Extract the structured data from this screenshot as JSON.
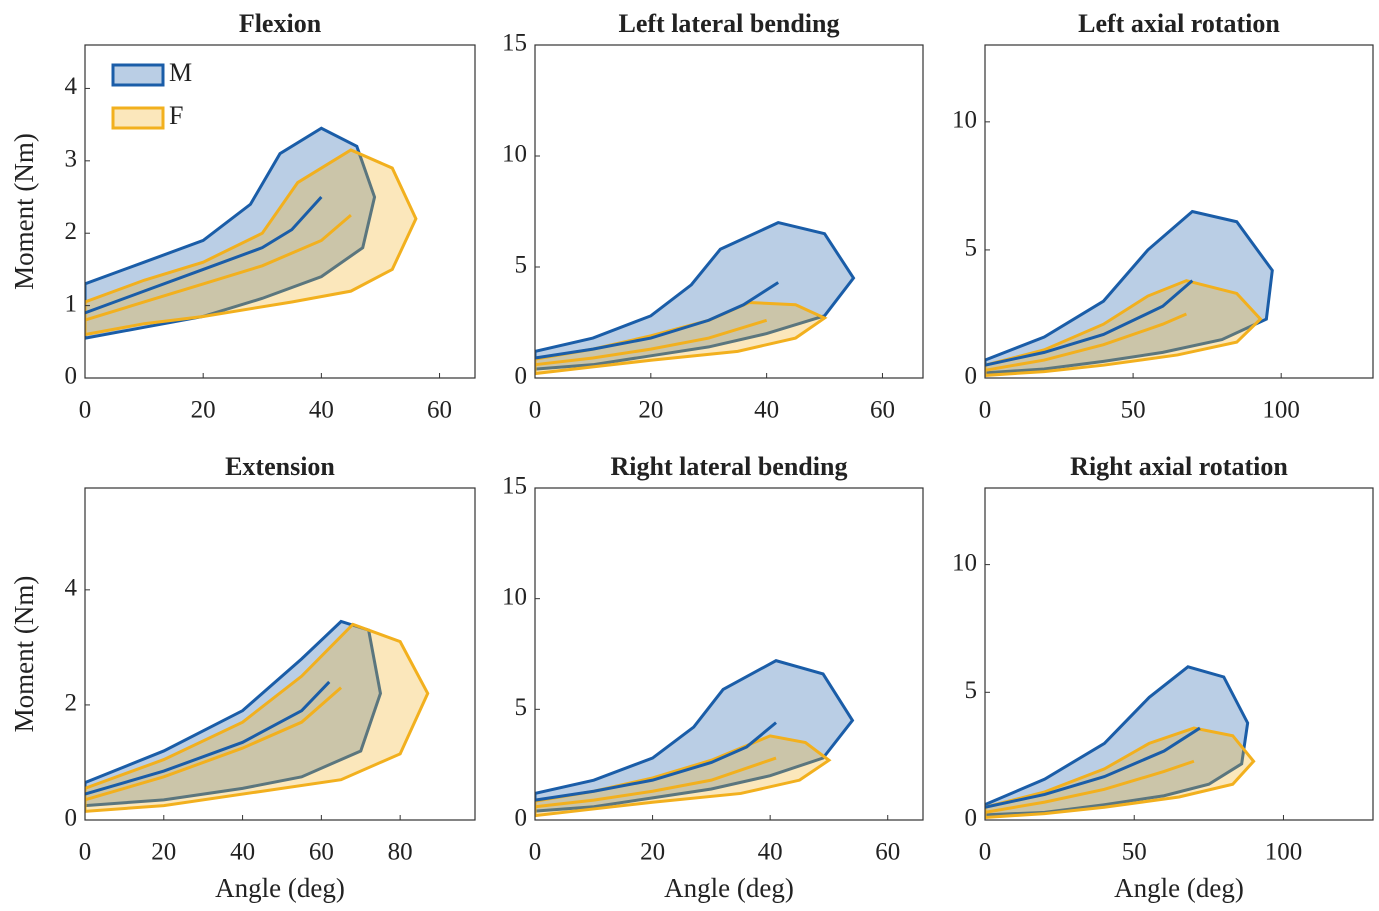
{
  "chart_data": [
    {
      "type": "line",
      "title": "Flexion",
      "ylabel": "Moment (Nm)",
      "legend": "upper left",
      "xlim": [
        0,
        66
      ],
      "ylim": [
        0,
        4.6
      ],
      "xticks": [
        0,
        20,
        40,
        60
      ],
      "yticks": [
        0,
        1,
        2,
        3,
        4
      ],
      "series": [
        {
          "name": "M",
          "color": "#1a5da8",
          "x": [
            0,
            10,
            20,
            30,
            35,
            40
          ],
          "values": [
            0.9,
            1.2,
            1.5,
            1.8,
            2.05,
            2.5
          ],
          "corridor_x": [
            0,
            10,
            20,
            28,
            33,
            40,
            46,
            49,
            47,
            40,
            30,
            20,
            10,
            0
          ],
          "corridor_values": [
            1.3,
            1.6,
            1.9,
            2.4,
            3.1,
            3.45,
            3.2,
            2.5,
            1.8,
            1.4,
            1.1,
            0.85,
            0.7,
            0.55
          ]
        },
        {
          "name": "F",
          "color": "#f2b01e",
          "x": [
            0,
            10,
            20,
            30,
            40,
            45
          ],
          "values": [
            0.8,
            1.05,
            1.3,
            1.55,
            1.9,
            2.25
          ],
          "corridor_x": [
            0,
            10,
            20,
            30,
            36,
            45,
            52,
            56,
            52,
            45,
            35,
            20,
            10,
            0
          ],
          "corridor_values": [
            1.05,
            1.35,
            1.6,
            2.0,
            2.7,
            3.15,
            2.9,
            2.2,
            1.5,
            1.2,
            1.05,
            0.85,
            0.75,
            0.6
          ]
        }
      ]
    },
    {
      "type": "line",
      "title": "Left lateral bending",
      "xlim": [
        0,
        67
      ],
      "ylim": [
        0,
        15
      ],
      "xticks": [
        0,
        20,
        40,
        60
      ],
      "yticks": [
        0,
        5,
        10,
        15
      ],
      "series": [
        {
          "color": "#1a5da8",
          "x": [
            0,
            10,
            20,
            30,
            36,
            42
          ],
          "values": [
            0.9,
            1.3,
            1.8,
            2.6,
            3.3,
            4.3
          ],
          "corridor_x": [
            0,
            10,
            20,
            27,
            32,
            42,
            50,
            55,
            50,
            40,
            30,
            20,
            10,
            0
          ],
          "corridor_values": [
            1.2,
            1.8,
            2.8,
            4.2,
            5.8,
            7.0,
            6.5,
            4.5,
            2.8,
            2.0,
            1.4,
            1.0,
            0.6,
            0.4
          ]
        },
        {
          "color": "#f2b01e",
          "x": [
            0,
            10,
            20,
            30,
            40
          ],
          "values": [
            0.6,
            0.9,
            1.3,
            1.8,
            2.6
          ],
          "corridor_x": [
            0,
            10,
            20,
            30,
            37,
            45,
            50,
            45,
            35,
            20,
            10,
            0
          ],
          "corridor_values": [
            0.85,
            1.3,
            1.9,
            2.6,
            3.4,
            3.3,
            2.7,
            1.8,
            1.2,
            0.8,
            0.5,
            0.2
          ]
        }
      ]
    },
    {
      "type": "line",
      "title": "Left axial rotation",
      "xlim": [
        0,
        131
      ],
      "ylim": [
        0,
        13
      ],
      "xticks": [
        0,
        50,
        100
      ],
      "yticks": [
        0,
        5,
        10
      ],
      "series": [
        {
          "color": "#1a5da8",
          "x": [
            0,
            20,
            40,
            60,
            70
          ],
          "values": [
            0.5,
            1.0,
            1.7,
            2.8,
            3.8
          ],
          "corridor_x": [
            0,
            20,
            40,
            55,
            70,
            85,
            97,
            95,
            80,
            60,
            40,
            20,
            0
          ],
          "corridor_values": [
            0.7,
            1.6,
            3.0,
            5.0,
            6.5,
            6.1,
            4.2,
            2.3,
            1.5,
            1.0,
            0.65,
            0.35,
            0.2
          ]
        },
        {
          "color": "#f2b01e",
          "x": [
            0,
            20,
            40,
            60,
            68
          ],
          "values": [
            0.3,
            0.7,
            1.3,
            2.1,
            2.5
          ],
          "corridor_x": [
            0,
            20,
            40,
            55,
            68,
            85,
            93,
            85,
            65,
            40,
            20,
            0
          ],
          "corridor_values": [
            0.5,
            1.1,
            2.1,
            3.2,
            3.8,
            3.3,
            2.3,
            1.4,
            0.9,
            0.5,
            0.25,
            0.1
          ]
        }
      ]
    },
    {
      "type": "line",
      "title": "Extension",
      "ylabel": "Moment (Nm)",
      "xlabel": "Angle (deg)",
      "xlim": [
        0,
        99
      ],
      "ylim": [
        0,
        5.77
      ],
      "xticks": [
        0,
        20,
        40,
        60,
        80
      ],
      "yticks": [
        0,
        2,
        4
      ],
      "series": [
        {
          "color": "#1a5da8",
          "x": [
            0,
            20,
            40,
            55,
            62
          ],
          "values": [
            0.45,
            0.85,
            1.35,
            1.9,
            2.4
          ],
          "corridor_x": [
            0,
            20,
            40,
            55,
            65,
            72,
            75,
            70,
            55,
            40,
            20,
            0
          ],
          "corridor_values": [
            0.65,
            1.2,
            1.9,
            2.8,
            3.45,
            3.3,
            2.2,
            1.2,
            0.75,
            0.55,
            0.35,
            0.25
          ]
        },
        {
          "color": "#f2b01e",
          "x": [
            0,
            20,
            40,
            55,
            65
          ],
          "values": [
            0.35,
            0.75,
            1.25,
            1.7,
            2.3
          ],
          "corridor_x": [
            0,
            20,
            40,
            55,
            68,
            80,
            87,
            80,
            65,
            45,
            20,
            0
          ],
          "corridor_values": [
            0.55,
            1.05,
            1.7,
            2.5,
            3.4,
            3.1,
            2.2,
            1.15,
            0.7,
            0.5,
            0.25,
            0.15
          ]
        }
      ]
    },
    {
      "type": "line",
      "title": "Right lateral bending",
      "xlabel": "Angle (deg)",
      "xlim": [
        0,
        66
      ],
      "ylim": [
        0,
        15
      ],
      "xticks": [
        0,
        20,
        40,
        60
      ],
      "yticks": [
        0,
        5,
        10,
        15
      ],
      "series": [
        {
          "color": "#1a5da8",
          "x": [
            0,
            10,
            20,
            30,
            36,
            41
          ],
          "values": [
            0.9,
            1.3,
            1.8,
            2.6,
            3.3,
            4.4
          ],
          "corridor_x": [
            0,
            10,
            20,
            27,
            32,
            41,
            49,
            54,
            49,
            40,
            30,
            20,
            10,
            0
          ],
          "corridor_values": [
            1.2,
            1.8,
            2.8,
            4.2,
            5.9,
            7.2,
            6.6,
            4.5,
            2.8,
            2.0,
            1.4,
            1.0,
            0.6,
            0.4
          ]
        },
        {
          "color": "#f2b01e",
          "x": [
            0,
            10,
            20,
            30,
            41
          ],
          "values": [
            0.6,
            0.9,
            1.3,
            1.8,
            2.8
          ],
          "corridor_x": [
            0,
            10,
            20,
            30,
            40,
            46,
            50,
            45,
            35,
            20,
            10,
            0
          ],
          "corridor_values": [
            0.85,
            1.3,
            1.9,
            2.7,
            3.8,
            3.5,
            2.7,
            1.8,
            1.2,
            0.8,
            0.5,
            0.2
          ]
        }
      ]
    },
    {
      "type": "line",
      "title": "Right axial rotation",
      "xlabel": "Angle (deg)",
      "xlim": [
        0,
        130
      ],
      "ylim": [
        0,
        13
      ],
      "xticks": [
        0,
        50,
        100
      ],
      "yticks": [
        0,
        5,
        10
      ],
      "series": [
        {
          "color": "#1a5da8",
          "x": [
            0,
            20,
            40,
            60,
            72
          ],
          "values": [
            0.5,
            1.0,
            1.7,
            2.7,
            3.6
          ],
          "corridor_x": [
            0,
            20,
            40,
            55,
            68,
            80,
            88,
            86,
            75,
            60,
            40,
            20,
            0
          ],
          "corridor_values": [
            0.6,
            1.6,
            3.0,
            4.8,
            6.0,
            5.6,
            3.8,
            2.2,
            1.4,
            0.95,
            0.6,
            0.3,
            0.2
          ]
        },
        {
          "color": "#f2b01e",
          "x": [
            0,
            20,
            40,
            60,
            70
          ],
          "values": [
            0.3,
            0.7,
            1.2,
            1.9,
            2.3
          ],
          "corridor_x": [
            0,
            20,
            40,
            55,
            70,
            83,
            90,
            83,
            65,
            40,
            20,
            0
          ],
          "corridor_values": [
            0.5,
            1.1,
            2.0,
            3.0,
            3.6,
            3.3,
            2.3,
            1.4,
            0.9,
            0.5,
            0.25,
            0.1
          ]
        }
      ]
    }
  ]
}
